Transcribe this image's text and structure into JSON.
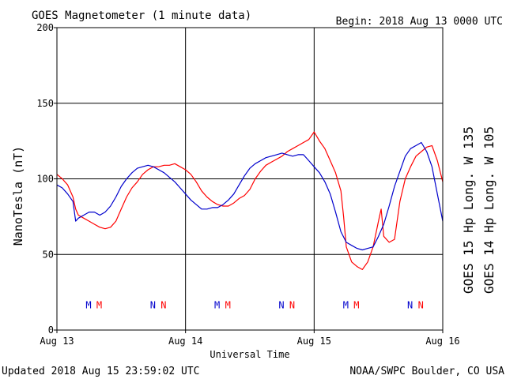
{
  "header": {
    "title": "GOES Magnetometer (1 minute data)",
    "begin": "Begin:  2018 Aug 13 0000 UTC"
  },
  "footer": {
    "updated": "Updated 2018 Aug 15 23:59:02 UTC",
    "credit": "NOAA/SWPC Boulder, CO USA"
  },
  "colors": {
    "goes15": "#ff0000",
    "goes14": "#0000cc",
    "axis": "#000000",
    "background": "#ffffff"
  },
  "chart_data": {
    "type": "line",
    "title": "GOES Magnetometer (1 minute data)",
    "xlabel": "Universal Time",
    "ylabel": "NanoTesla (nT)",
    "xlim": [
      0,
      72
    ],
    "ylim": [
      0,
      200
    ],
    "x_unit": "hours since 2018 Aug 13 0000 UTC",
    "grid": true,
    "x_ticks": [
      {
        "x": 0,
        "label": "Aug 13"
      },
      {
        "x": 24,
        "label": "Aug 14"
      },
      {
        "x": 48,
        "label": "Aug 15"
      },
      {
        "x": 72,
        "label": "Aug 16"
      }
    ],
    "y_ticks": [
      0,
      50,
      100,
      150,
      200
    ],
    "legend": {
      "placement": "right",
      "entries": [
        {
          "label": "GOES 15 Hp  Long. W 135",
          "color": "#ff0000"
        },
        {
          "label": "GOES 14 Hp  Long. W 105",
          "color": "#0000cc"
        }
      ]
    },
    "markers": [
      {
        "x": 5.9,
        "label": "M",
        "color": "#0000cc"
      },
      {
        "x": 7.9,
        "label": "M",
        "color": "#ff0000"
      },
      {
        "x": 17.9,
        "label": "N",
        "color": "#0000cc"
      },
      {
        "x": 19.9,
        "label": "N",
        "color": "#ff0000"
      },
      {
        "x": 29.9,
        "label": "M",
        "color": "#0000cc"
      },
      {
        "x": 31.9,
        "label": "M",
        "color": "#ff0000"
      },
      {
        "x": 41.9,
        "label": "N",
        "color": "#0000cc"
      },
      {
        "x": 43.9,
        "label": "N",
        "color": "#ff0000"
      },
      {
        "x": 53.9,
        "label": "M",
        "color": "#0000cc"
      },
      {
        "x": 55.9,
        "label": "M",
        "color": "#ff0000"
      },
      {
        "x": 65.9,
        "label": "N",
        "color": "#0000cc"
      },
      {
        "x": 67.9,
        "label": "N",
        "color": "#ff0000"
      }
    ],
    "series": [
      {
        "name": "GOES 15 Hp  Long. W 135",
        "color": "#ff0000",
        "points": [
          [
            0,
            103
          ],
          [
            1,
            100
          ],
          [
            2,
            96
          ],
          [
            3,
            88
          ],
          [
            3.5,
            80
          ],
          [
            4,
            76
          ],
          [
            5,
            74
          ],
          [
            6,
            72
          ],
          [
            7,
            70
          ],
          [
            8,
            68
          ],
          [
            9,
            67
          ],
          [
            10,
            68
          ],
          [
            11,
            72
          ],
          [
            12,
            80
          ],
          [
            13,
            88
          ],
          [
            14,
            94
          ],
          [
            15,
            98
          ],
          [
            16,
            103
          ],
          [
            17,
            106
          ],
          [
            18,
            108
          ],
          [
            19,
            108
          ],
          [
            20,
            109
          ],
          [
            21,
            109
          ],
          [
            22,
            110
          ],
          [
            23,
            108
          ],
          [
            24,
            106
          ],
          [
            25,
            103
          ],
          [
            26,
            98
          ],
          [
            27,
            92
          ],
          [
            28,
            88
          ],
          [
            29,
            85
          ],
          [
            30,
            83
          ],
          [
            31,
            82
          ],
          [
            32,
            82
          ],
          [
            33,
            84
          ],
          [
            34,
            87
          ],
          [
            35,
            89
          ],
          [
            36,
            93
          ],
          [
            37,
            100
          ],
          [
            38,
            105
          ],
          [
            39,
            109
          ],
          [
            40,
            111
          ],
          [
            41,
            113
          ],
          [
            42,
            115
          ],
          [
            43,
            118
          ],
          [
            44,
            120
          ],
          [
            45,
            122
          ],
          [
            46,
            124
          ],
          [
            47,
            126
          ],
          [
            48,
            131
          ],
          [
            49,
            125
          ],
          [
            50,
            120
          ],
          [
            51,
            112
          ],
          [
            52,
            104
          ],
          [
            53,
            92
          ],
          [
            53.5,
            75
          ],
          [
            54,
            55
          ],
          [
            55,
            45
          ],
          [
            56,
            42
          ],
          [
            57,
            40
          ],
          [
            58,
            45
          ],
          [
            59,
            55
          ],
          [
            60,
            72
          ],
          [
            60.5,
            80
          ],
          [
            61,
            62
          ],
          [
            62,
            58
          ],
          [
            63,
            60
          ],
          [
            64,
            85
          ],
          [
            65,
            100
          ],
          [
            66,
            108
          ],
          [
            67,
            115
          ],
          [
            68,
            118
          ],
          [
            69,
            121
          ],
          [
            70,
            122
          ],
          [
            71,
            112
          ],
          [
            72,
            98
          ]
        ]
      },
      {
        "name": "GOES 14 Hp  Long. W 105",
        "color": "#0000cc",
        "points": [
          [
            0,
            96
          ],
          [
            1,
            94
          ],
          [
            2,
            90
          ],
          [
            3,
            85
          ],
          [
            3.5,
            72
          ],
          [
            4,
            74
          ],
          [
            5,
            76
          ],
          [
            6,
            78
          ],
          [
            7,
            78
          ],
          [
            8,
            76
          ],
          [
            9,
            78
          ],
          [
            10,
            82
          ],
          [
            11,
            88
          ],
          [
            12,
            95
          ],
          [
            13,
            100
          ],
          [
            14,
            104
          ],
          [
            15,
            107
          ],
          [
            16,
            108
          ],
          [
            17,
            109
          ],
          [
            18,
            108
          ],
          [
            19,
            106
          ],
          [
            20,
            104
          ],
          [
            21,
            101
          ],
          [
            22,
            98
          ],
          [
            23,
            94
          ],
          [
            24,
            90
          ],
          [
            25,
            86
          ],
          [
            26,
            83
          ],
          [
            27,
            80
          ],
          [
            28,
            80
          ],
          [
            29,
            81
          ],
          [
            30,
            81
          ],
          [
            31,
            83
          ],
          [
            32,
            86
          ],
          [
            33,
            90
          ],
          [
            34,
            96
          ],
          [
            35,
            102
          ],
          [
            36,
            107
          ],
          [
            37,
            110
          ],
          [
            38,
            112
          ],
          [
            39,
            114
          ],
          [
            40,
            115
          ],
          [
            41,
            116
          ],
          [
            42,
            117
          ],
          [
            43,
            116
          ],
          [
            44,
            115
          ],
          [
            45,
            116
          ],
          [
            46,
            116
          ],
          [
            47,
            112
          ],
          [
            48,
            108
          ],
          [
            49,
            104
          ],
          [
            50,
            98
          ],
          [
            51,
            90
          ],
          [
            52,
            78
          ],
          [
            53,
            65
          ],
          [
            54,
            58
          ],
          [
            55,
            56
          ],
          [
            56,
            54
          ],
          [
            57,
            53
          ],
          [
            58,
            54
          ],
          [
            59,
            55
          ],
          [
            60,
            62
          ],
          [
            61,
            70
          ],
          [
            62,
            82
          ],
          [
            63,
            95
          ],
          [
            64,
            105
          ],
          [
            65,
            115
          ],
          [
            66,
            120
          ],
          [
            67,
            122
          ],
          [
            68,
            124
          ],
          [
            69,
            118
          ],
          [
            70,
            108
          ],
          [
            71,
            90
          ],
          [
            72,
            72
          ]
        ]
      }
    ]
  }
}
